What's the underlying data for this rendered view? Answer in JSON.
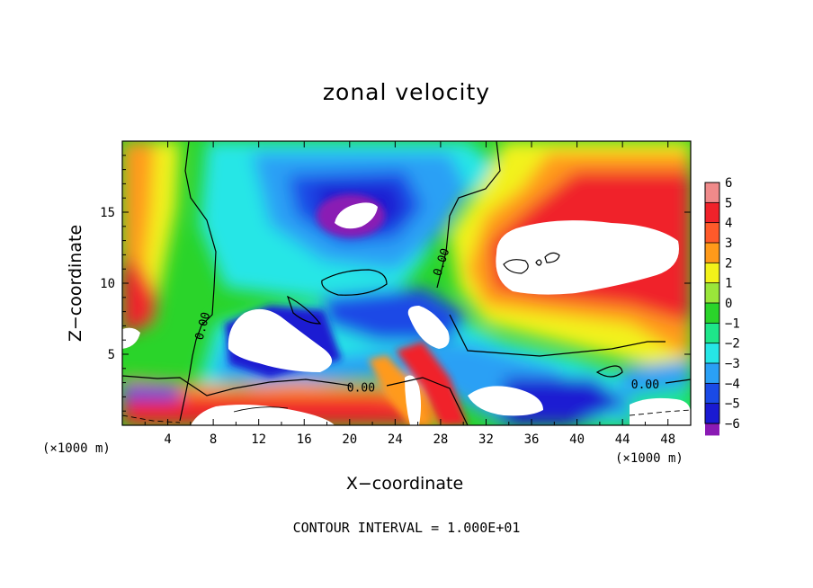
{
  "chart_data": {
    "type": "heatmap",
    "title": "zonal velocity",
    "xlabel": "X−coordinate",
    "ylabel": "Z−coordinate",
    "x_unit": "(×1000 m)",
    "y_unit": "(×1000 m)",
    "xlim": [
      0,
      50
    ],
    "ylim": [
      0,
      20
    ],
    "x_ticks": [
      4,
      8,
      12,
      16,
      20,
      24,
      28,
      32,
      36,
      40,
      44,
      48
    ],
    "y_ticks": [
      5,
      10,
      15
    ],
    "colorbar": {
      "levels": [
        6,
        5,
        4,
        3,
        2,
        1,
        0,
        -1,
        -2,
        -3,
        -4,
        -5,
        -6
      ],
      "level_labels": [
        "6",
        "5",
        "4",
        "3",
        "2",
        "1",
        "0",
        "−1",
        "−2",
        "−3",
        "−4",
        "−5",
        "−6"
      ],
      "colors": [
        "#f08a8a",
        "#f0222a",
        "#ff5a2a",
        "#ff9a1a",
        "#f2f21a",
        "#9ae63a",
        "#2ad42a",
        "#1ee68a",
        "#26e6e6",
        "#2aa0f5",
        "#1a4ae6",
        "#1a1ad2",
        "#8a1ab4"
      ]
    },
    "contour_labels": [
      {
        "text": "0.00",
        "x": 7.0,
        "z": 7.0
      },
      {
        "text": "0.00",
        "x": 28.0,
        "z": 11.5
      },
      {
        "text": "0.00",
        "x": 21.0,
        "z": 2.7
      },
      {
        "text": "0.00",
        "x": 46.0,
        "z": 2.9
      }
    ],
    "contour_interval": "CONTOUR INTERVAL = 1.000E+01"
  }
}
